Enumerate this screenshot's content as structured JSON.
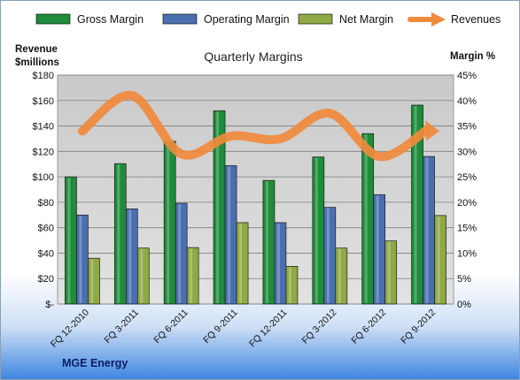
{
  "chart_data": {
    "type": "bar",
    "title": "Quarterly Margins",
    "ylabel_left": [
      "Revenue",
      "$millions"
    ],
    "ylabel_right": "Margin %",
    "footer": "MGE Energy",
    "categories": [
      "FQ 12-2010",
      "FQ 3-2011",
      "FQ 6-2011",
      "FQ 9-2011",
      "FQ 12-2011",
      "FQ 3-2012",
      "FQ 6-2012",
      "FQ 9-2012"
    ],
    "ylim_left": [
      0,
      180
    ],
    "ylim_right": [
      0,
      45
    ],
    "left_ticks": [
      "$-",
      "$20",
      "$40",
      "$60",
      "$80",
      "$100",
      "$120",
      "$140",
      "$160",
      "$180"
    ],
    "right_ticks": [
      "0%",
      "5%",
      "10%",
      "15%",
      "20%",
      "25%",
      "30%",
      "35%",
      "40%",
      "45%"
    ],
    "series": [
      {
        "name": "Gross Margin",
        "type": "bar",
        "axis": "right",
        "color": "#1e8c3a",
        "values": [
          25.0,
          27.6,
          32.0,
          38.0,
          24.3,
          28.9,
          33.5,
          39.1
        ]
      },
      {
        "name": "Operating Margin",
        "type": "bar",
        "axis": "right",
        "color": "#4a6fb0",
        "values": [
          17.5,
          18.7,
          19.8,
          27.2,
          16.0,
          19.0,
          21.5,
          29.0
        ]
      },
      {
        "name": "Net Margin",
        "type": "bar",
        "axis": "right",
        "color": "#8fa944",
        "values": [
          9.0,
          11.0,
          11.1,
          16.0,
          7.4,
          11.0,
          12.4,
          17.4
        ]
      },
      {
        "name": "Revenues",
        "type": "line",
        "axis": "left",
        "color": "#f08a3c",
        "values": [
          136,
          164,
          118,
          132,
          130,
          150,
          116,
          138
        ]
      }
    ],
    "legend_position": "top",
    "grid": true
  }
}
